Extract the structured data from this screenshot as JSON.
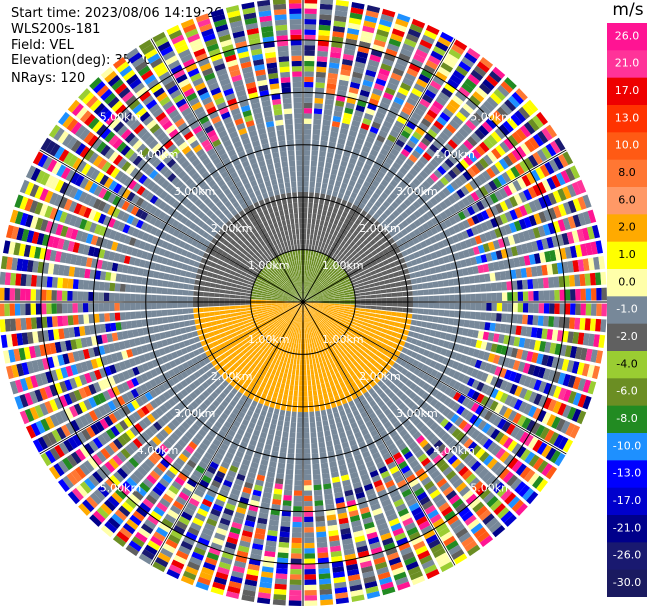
{
  "info": {
    "start_time": "Start time: 2023/08/06 14:19:26",
    "site": "WLS200s-181",
    "field": "Field: VEL",
    "elevation": "Elevation(deg): 35.30",
    "nrays": "NRays: 120"
  },
  "chart_data": {
    "type": "ppi-polar",
    "field": "VEL",
    "nrays": 120,
    "elevation_deg": 35.3,
    "max_range_km": 5.8,
    "range_rings_km": [
      1.0,
      2.0,
      3.0,
      4.0,
      5.0
    ],
    "ring_labels": [
      "1.00km",
      "2.00km",
      "3.00km",
      "4.00km",
      "5.00km"
    ],
    "azimuth_spokes_deg": [
      0,
      30,
      60,
      90,
      120,
      150,
      180,
      210,
      240,
      270,
      300,
      330
    ],
    "velocity_pattern": {
      "near_range_km": [
        0,
        1.0
      ],
      "north_near_velocity": -5.0,
      "south_near_velocity": 2.5,
      "mid_range_km": [
        1.0,
        2.1
      ],
      "north_mid_velocity": -2.0,
      "south_mid_velocity": 2.0,
      "noise_onset_km": 3.4
    },
    "colorbar": {
      "unit": "m/s",
      "ticks": [
        "26.0",
        "21.0",
        "17.0",
        "13.0",
        "10.0",
        "8.0",
        "6.0",
        "2.0",
        "1.0",
        "0.0",
        "-1.0",
        "-2.0",
        "-4.0",
        "-6.0",
        "-8.0",
        "-10.0",
        "-13.0",
        "-17.0",
        "-21.0",
        "-26.0",
        "-30.0"
      ],
      "bins": [
        {
          "min": 26.0,
          "max": 30.0,
          "color": "#ff1493"
        },
        {
          "min": 21.0,
          "max": 26.0,
          "color": "#ff3399"
        },
        {
          "min": 17.0,
          "max": 21.0,
          "color": "#ee0000"
        },
        {
          "min": 13.0,
          "max": 17.0,
          "color": "#ff3300"
        },
        {
          "min": 10.0,
          "max": 13.0,
          "color": "#ff5a14"
        },
        {
          "min": 8.0,
          "max": 10.0,
          "color": "#ff7733"
        },
        {
          "min": 6.0,
          "max": 8.0,
          "color": "#ff9966"
        },
        {
          "min": 2.0,
          "max": 6.0,
          "color": "#ffaa00"
        },
        {
          "min": 1.0,
          "max": 2.0,
          "color": "#ffff00"
        },
        {
          "min": 0.0,
          "max": 1.0,
          "color": "#ffffaa"
        },
        {
          "min": -1.0,
          "max": 0.0,
          "color": "#778899"
        },
        {
          "min": -2.0,
          "max": -1.0,
          "color": "#606060"
        },
        {
          "min": -4.0,
          "max": -2.0,
          "color": "#9acd32"
        },
        {
          "min": -6.0,
          "max": -4.0,
          "color": "#6b8e23"
        },
        {
          "min": -8.0,
          "max": -6.0,
          "color": "#228b22"
        },
        {
          "min": -10.0,
          "max": -8.0,
          "color": "#1e90ff"
        },
        {
          "min": -13.0,
          "max": -10.0,
          "color": "#0000ff"
        },
        {
          "min": -17.0,
          "max": -13.0,
          "color": "#0000cd"
        },
        {
          "min": -21.0,
          "max": -17.0,
          "color": "#00008b"
        },
        {
          "min": -26.0,
          "max": -21.0,
          "color": "#191970"
        },
        {
          "min": -30.0,
          "max": -26.0,
          "color": "#1a1a60"
        }
      ],
      "noise_palette": [
        "#ff1493",
        "#ee0000",
        "#ffff00",
        "#0000ff",
        "#228b22",
        "#ff7733",
        "#9acd32",
        "#778899",
        "#1e90ff",
        "#ffaa00",
        "#00008b",
        "#ff3399",
        "#6b8e23",
        "#606060",
        "#ff5a14",
        "#ffffaa",
        "#191970",
        "#0000cd"
      ]
    }
  }
}
